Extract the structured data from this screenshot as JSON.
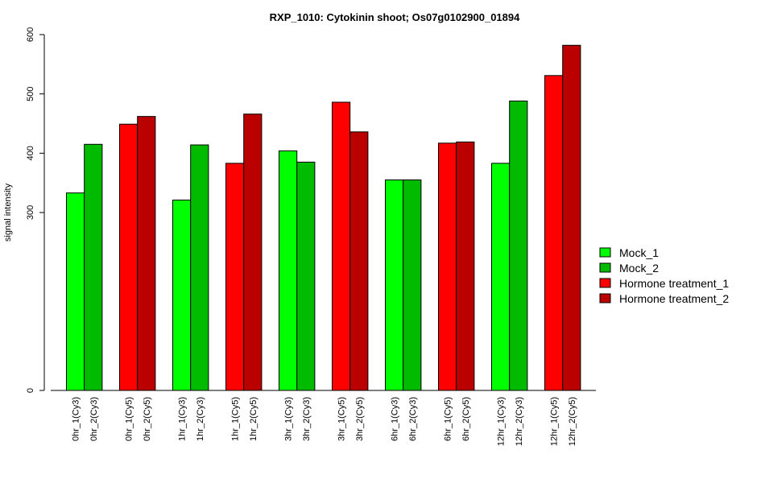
{
  "chart_data": {
    "type": "bar",
    "title": "RXP_1010: Cytokinin shoot; Os07g0102900_01894",
    "ylabel": "signal intensity",
    "xlabel": "",
    "ylim": [
      0,
      600
    ],
    "yticks": [
      0,
      300,
      400,
      500,
      600
    ],
    "bars": [
      {
        "label": "0hr_1(Cy3)",
        "value": 333,
        "series": "Mock_1"
      },
      {
        "label": "0hr_2(Cy3)",
        "value": 415,
        "series": "Mock_2"
      },
      {
        "label": "0hr_1(Cy5)",
        "value": 449,
        "series": "Hormone treatment_1"
      },
      {
        "label": "0hr_2(Cy5)",
        "value": 462,
        "series": "Hormone treatment_2"
      },
      {
        "label": "1hr_1(Cy3)",
        "value": 321,
        "series": "Mock_1"
      },
      {
        "label": "1hr_2(Cy3)",
        "value": 414,
        "series": "Mock_2"
      },
      {
        "label": "1hr_1(Cy5)",
        "value": 383,
        "series": "Hormone treatment_1"
      },
      {
        "label": "1hr_2(Cy5)",
        "value": 466,
        "series": "Hormone treatment_2"
      },
      {
        "label": "3hr_1(Cy3)",
        "value": 404,
        "series": "Mock_1"
      },
      {
        "label": "3hr_2(Cy3)",
        "value": 385,
        "series": "Mock_2"
      },
      {
        "label": "3hr_1(Cy5)",
        "value": 486,
        "series": "Hormone treatment_1"
      },
      {
        "label": "3hr_2(Cy5)",
        "value": 436,
        "series": "Hormone treatment_2"
      },
      {
        "label": "6hr_1(Cy3)",
        "value": 355,
        "series": "Mock_1"
      },
      {
        "label": "6hr_2(Cy3)",
        "value": 355,
        "series": "Mock_2"
      },
      {
        "label": "6hr_1(Cy5)",
        "value": 417,
        "series": "Hormone treatment_1"
      },
      {
        "label": "6hr_2(Cy5)",
        "value": 419,
        "series": "Hormone treatment_2"
      },
      {
        "label": "12hr_1(Cy3)",
        "value": 383,
        "series": "Mock_1"
      },
      {
        "label": "12hr_2(Cy3)",
        "value": 488,
        "series": "Mock_2"
      },
      {
        "label": "12hr_1(Cy5)",
        "value": 531,
        "series": "Hormone treatment_1"
      },
      {
        "label": "12hr_2(Cy5)",
        "value": 582,
        "series": "Hormone treatment_2"
      }
    ],
    "legend": {
      "placement": "right",
      "entries": [
        {
          "name": "Mock_1",
          "color": "#00ff00"
        },
        {
          "name": "Mock_2",
          "color": "#00bb00"
        },
        {
          "name": "Hormone treatment_1",
          "color": "#ff0000"
        },
        {
          "name": "Hormone treatment_2",
          "color": "#bb0000"
        }
      ]
    },
    "grid": false
  }
}
